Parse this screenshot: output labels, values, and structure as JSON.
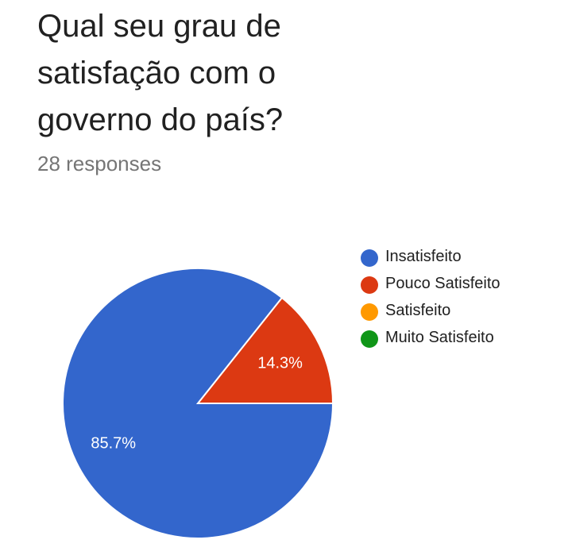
{
  "question": {
    "title": "Qual seu grau de satisfação com o governo do país?",
    "responses": "28 responses"
  },
  "colors": {
    "Insatisfeito": "#3366cc",
    "Pouco Satisfeito": "#dc3912",
    "Satisfeito": "#ff9900",
    "Muito Satisfeito": "#109618"
  },
  "chart_data": {
    "type": "pie",
    "title": "Qual seu grau de satisfação com o governo do país?",
    "legend_position": "right",
    "categories": [
      "Insatisfeito",
      "Pouco Satisfeito",
      "Satisfeito",
      "Muito Satisfeito"
    ],
    "values": [
      85.7,
      14.3,
      0,
      0
    ],
    "labels": [
      "85.7%",
      "14.3%",
      "",
      ""
    ]
  }
}
